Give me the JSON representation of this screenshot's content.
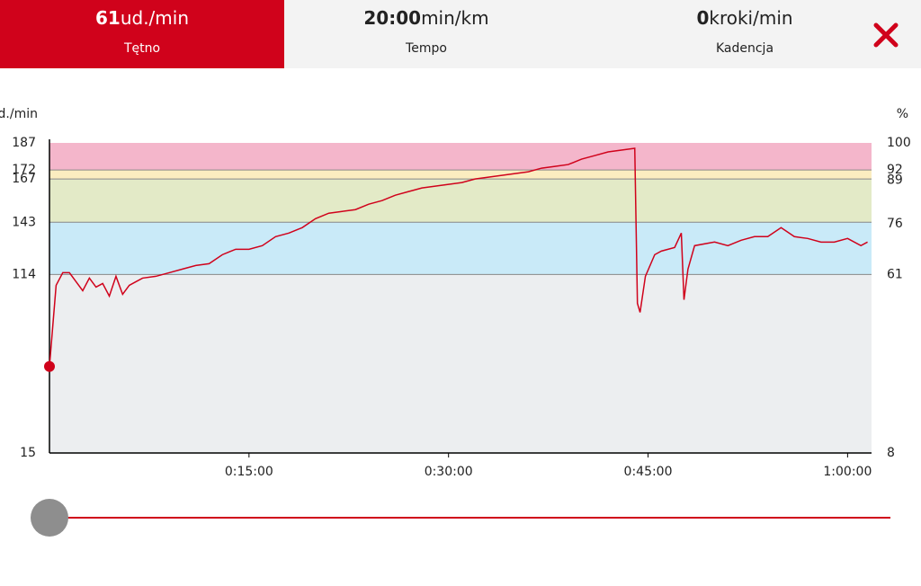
{
  "tabs": [
    {
      "value": "61",
      "unit": "ud./min",
      "label": "Tętno"
    },
    {
      "value": "20:00",
      "unit": "min/km",
      "label": "Tempo"
    },
    {
      "value": "0",
      "unit": "kroki/min",
      "label": "Kadencja"
    }
  ],
  "chart_data": {
    "type": "line",
    "ylabel": "ud./min",
    "y2label": "%",
    "x": [
      0,
      0.5,
      1,
      1.5,
      2,
      2.5,
      3,
      3.5,
      4,
      4.5,
      5,
      5.5,
      6,
      6.5,
      7,
      8,
      9,
      10,
      11,
      12,
      13,
      14,
      15,
      16,
      17,
      18,
      19,
      20,
      21,
      22,
      23,
      24,
      25,
      26,
      27,
      28,
      29,
      30,
      31,
      32,
      33,
      34,
      35,
      36,
      37,
      38,
      39,
      40,
      41,
      42,
      43,
      44,
      44.2,
      44.4,
      44.8,
      45.5,
      46,
      47,
      47.5,
      47.7,
      48,
      48.5,
      50,
      51,
      52,
      53,
      54,
      55,
      56,
      57,
      58,
      59,
      60,
      61,
      61.5
    ],
    "series": [
      {
        "name": "Tętno",
        "color": "#d0021b",
        "values": [
          63,
          108,
          115,
          115,
          110,
          105,
          112,
          107,
          109,
          102,
          113,
          103,
          108,
          110,
          112,
          113,
          115,
          117,
          119,
          120,
          125,
          128,
          128,
          130,
          135,
          137,
          140,
          145,
          148,
          149,
          150,
          153,
          155,
          158,
          160,
          162,
          163,
          164,
          165,
          167,
          168,
          169,
          170,
          171,
          173,
          174,
          175,
          178,
          180,
          182,
          183,
          184,
          98,
          93,
          113,
          125,
          127,
          129,
          137,
          100,
          117,
          130,
          132,
          130,
          133,
          135,
          135,
          140,
          135,
          134,
          132,
          132,
          134,
          130,
          132
        ]
      }
    ],
    "xlim": [
      0,
      61.8
    ],
    "xticks": [
      {
        "value": 15,
        "label": "0:15:00"
      },
      {
        "value": 30,
        "label": "0:30:00"
      },
      {
        "value": 45,
        "label": "0:45:00"
      },
      {
        "value": 60,
        "label": "1:00:00"
      }
    ],
    "ylim": [
      15,
      187
    ],
    "yticks": [
      15,
      114,
      143,
      167,
      172,
      187
    ],
    "y2lim": [
      8,
      100
    ],
    "y2ticks": [
      8,
      61,
      76,
      89,
      92,
      100
    ],
    "zone_colors": [
      "#eceef0",
      "#c9eaf8",
      "#e3eac7",
      "#fbedc0",
      "#f4b6cb"
    ],
    "grid": true
  }
}
